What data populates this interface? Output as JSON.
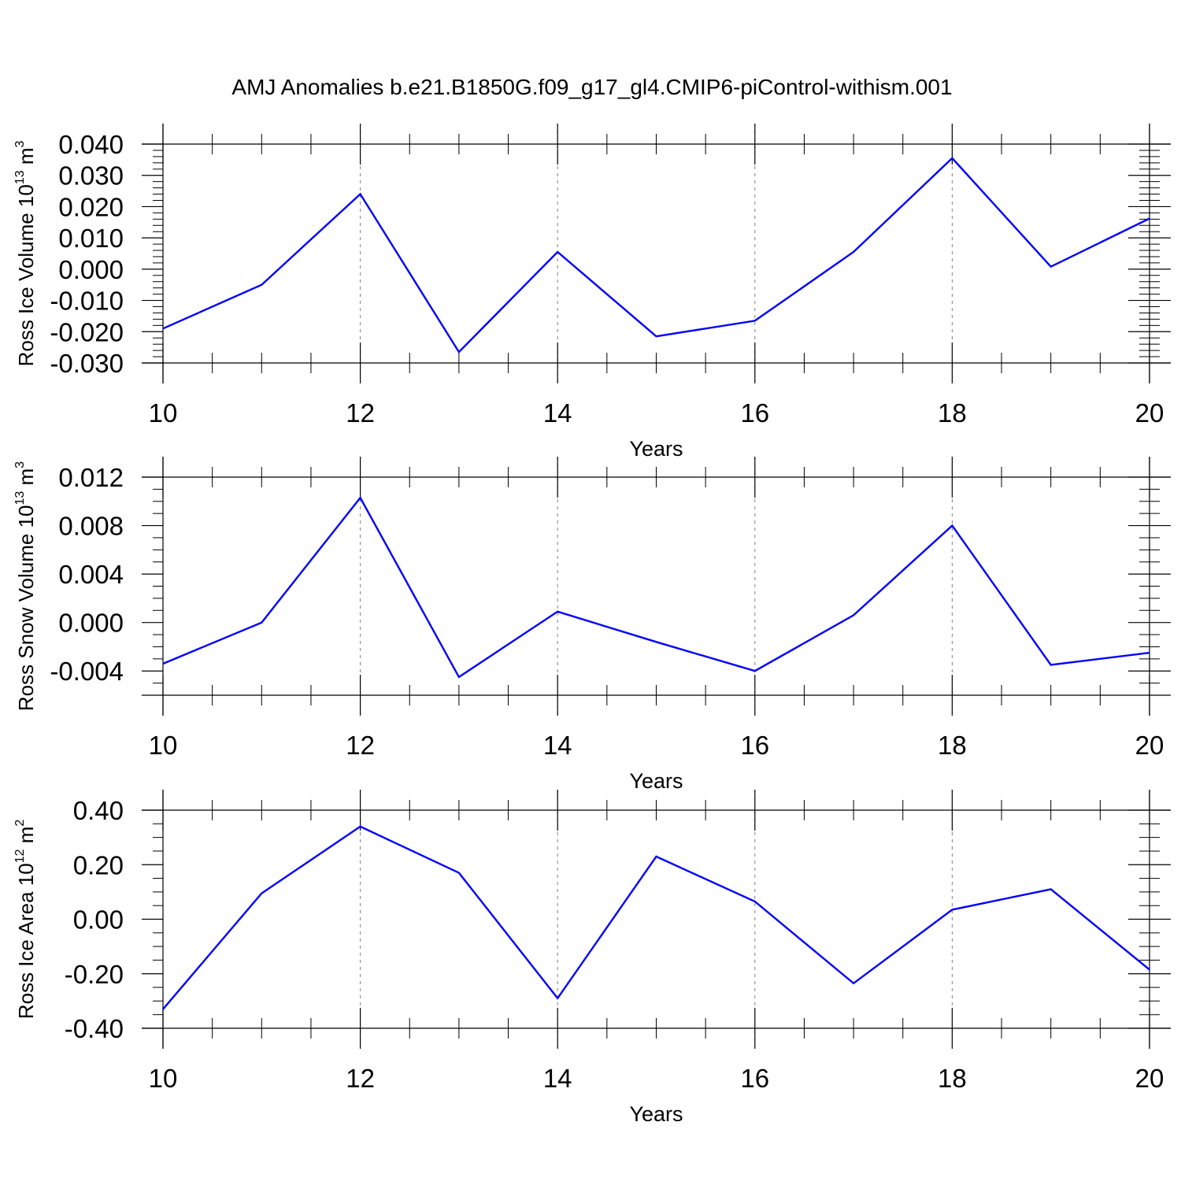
{
  "title": "AMJ Anomalies b.e21.B1850G.f09_g17_gl4.CMIP6-piControl-withism.001",
  "colors": {
    "line": "#0000ff",
    "grid": "#808080",
    "axis": "#000000"
  },
  "chart_data": [
    {
      "type": "line",
      "ylabel": {
        "main": "Ross Ice Volume 10",
        "exp": "13",
        "unit": " m",
        "unit_exp": "3"
      },
      "xlabel": "Years",
      "xlim": [
        10,
        20
      ],
      "ylim": [
        -0.03,
        0.04
      ],
      "x_ticks": [
        10,
        12,
        14,
        16,
        18,
        20
      ],
      "x_tick_labels": [
        "10",
        "12",
        "14",
        "16",
        "18",
        "20"
      ],
      "y_ticks": [
        -0.03,
        -0.02,
        -0.01,
        0.0,
        0.01,
        0.02,
        0.03,
        0.04
      ],
      "y_tick_labels": [
        "-0.030",
        "-0.020",
        "-0.010",
        "0.000",
        "0.010",
        "0.020",
        "0.030",
        "0.040"
      ],
      "y_minor_step": 0.002,
      "grid": "x-dashed",
      "series": [
        {
          "x": [
            10,
            11,
            12,
            13,
            14,
            15,
            16,
            17,
            18,
            19,
            20
          ],
          "values": [
            -0.019,
            -0.005,
            0.024,
            -0.0265,
            0.0055,
            -0.0215,
            -0.0165,
            0.0055,
            0.0355,
            0.0008,
            0.0162
          ]
        }
      ]
    },
    {
      "type": "line",
      "ylabel": {
        "main": "Ross Snow Volume 10",
        "exp": "13",
        "unit": " m",
        "unit_exp": "3"
      },
      "xlabel": "Years",
      "xlim": [
        10,
        20
      ],
      "ylim": [
        -0.006,
        0.012
      ],
      "x_ticks": [
        10,
        12,
        14,
        16,
        18,
        20
      ],
      "x_tick_labels": [
        "10",
        "12",
        "14",
        "16",
        "18",
        "20"
      ],
      "y_ticks": [
        -0.004,
        0.0,
        0.004,
        0.008,
        0.012
      ],
      "y_tick_labels": [
        "-0.004",
        "0.000",
        "0.004",
        "0.008",
        "0.012"
      ],
      "y_minor_step": 0.001,
      "grid": "x-dashed",
      "series": [
        {
          "x": [
            10,
            11,
            12,
            13,
            14,
            15,
            16,
            17,
            18,
            19,
            20
          ],
          "values": [
            -0.0034,
            0.0,
            0.0103,
            -0.0045,
            0.0009,
            -0.0016,
            -0.004,
            0.0006,
            0.008,
            -0.0035,
            -0.0025
          ]
        }
      ]
    },
    {
      "type": "line",
      "ylabel": {
        "main": "Ross Ice Area 10",
        "exp": "12",
        "unit": " m",
        "unit_exp": "2"
      },
      "xlabel": "Years",
      "xlim": [
        10,
        20
      ],
      "ylim": [
        -0.4,
        0.4
      ],
      "x_ticks": [
        10,
        12,
        14,
        16,
        18,
        20
      ],
      "x_tick_labels": [
        "10",
        "12",
        "14",
        "16",
        "18",
        "20"
      ],
      "y_ticks": [
        -0.4,
        -0.2,
        0.0,
        0.2,
        0.4
      ],
      "y_tick_labels": [
        "-0.40",
        "-0.20",
        "0.00",
        "0.20",
        "0.40"
      ],
      "y_minor_step": 0.05,
      "grid": "x-dashed",
      "series": [
        {
          "x": [
            10,
            11,
            12,
            13,
            14,
            15,
            16,
            17,
            18,
            19,
            20
          ],
          "values": [
            -0.33,
            0.095,
            0.34,
            0.17,
            -0.29,
            0.23,
            0.065,
            -0.235,
            0.035,
            0.11,
            -0.185
          ]
        }
      ]
    }
  ]
}
